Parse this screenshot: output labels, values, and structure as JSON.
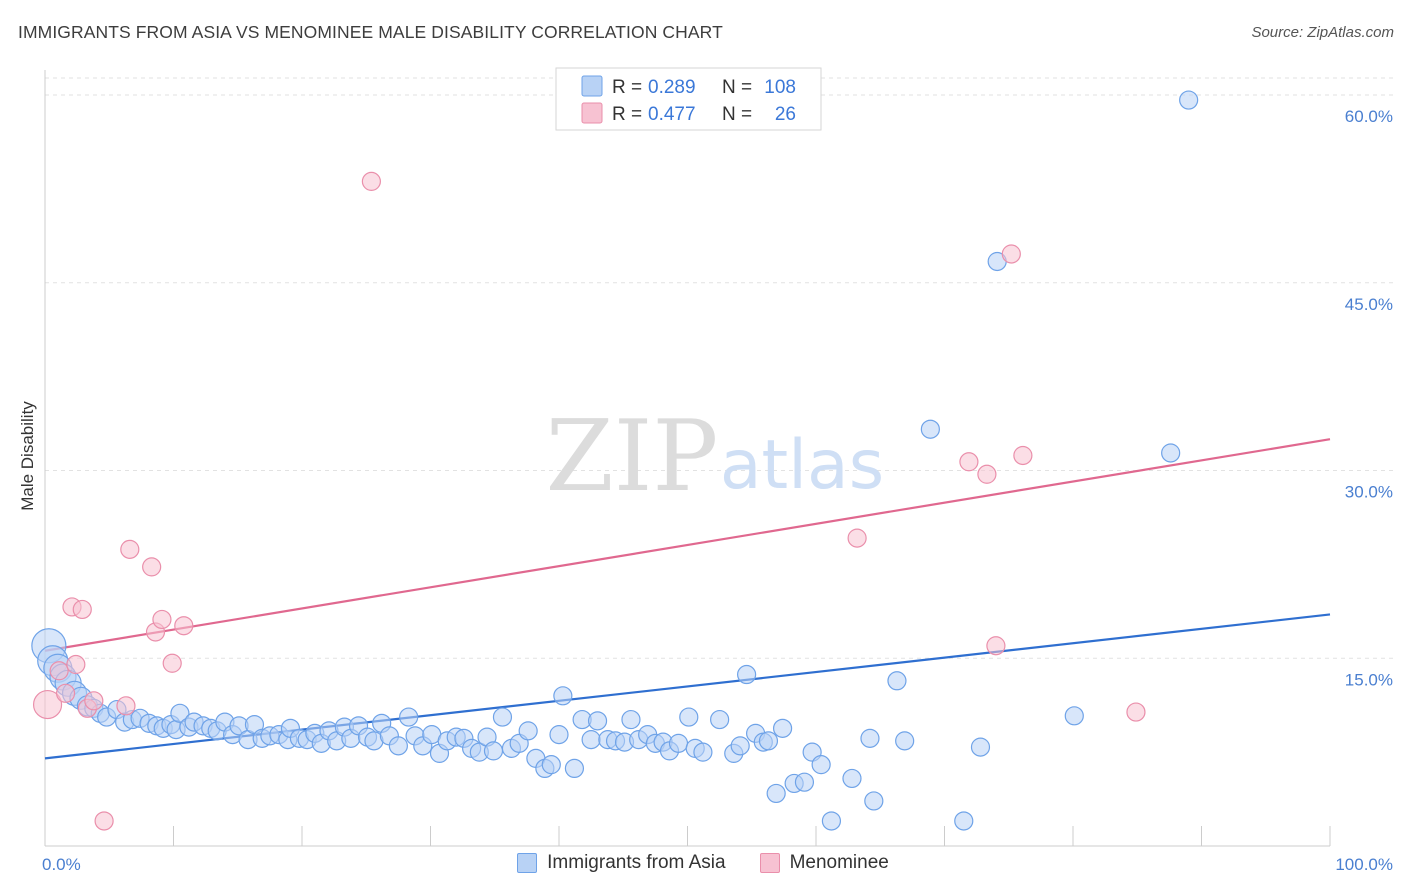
{
  "title": "IMMIGRANTS FROM ASIA VS MENOMINEE MALE DISABILITY CORRELATION CHART",
  "source": "Source: ZipAtlas.com",
  "watermark": {
    "zip": "ZIP",
    "atlas": "atlas"
  },
  "chart_data": {
    "type": "scatter",
    "ylabel": "Male Disability",
    "xlim": [
      0,
      100
    ],
    "ylim": [
      0,
      62
    ],
    "x_tick_labels": [
      {
        "value": 0,
        "label": "0.0%"
      },
      {
        "value": 100,
        "label": "100.0%"
      }
    ],
    "y_ticks": [
      {
        "value": 15,
        "label": "15.0%"
      },
      {
        "value": 30,
        "label": "30.0%"
      },
      {
        "value": 45,
        "label": "45.0%"
      },
      {
        "value": 60,
        "label": "60.0%"
      }
    ],
    "grid": true,
    "legend_position": "top-center",
    "series": [
      {
        "name": "Immigrants from Asia",
        "color": "#6fa3e8",
        "fill": "#b8d2f5",
        "line_color": "#2f6fd0",
        "R": "0.289",
        "N": "108",
        "trend": [
          [
            0,
            7.0
          ],
          [
            100,
            18.5
          ]
        ],
        "points": [
          [
            0.3,
            16.0
          ],
          [
            0.6,
            14.8
          ],
          [
            1.0,
            14.2
          ],
          [
            1.4,
            13.5
          ],
          [
            1.8,
            13.0
          ],
          [
            2.3,
            12.2
          ],
          [
            2.8,
            11.8
          ],
          [
            3.3,
            11.2
          ],
          [
            3.8,
            11.0
          ],
          [
            4.3,
            10.6
          ],
          [
            4.8,
            10.3
          ],
          [
            5.6,
            10.9
          ],
          [
            6.2,
            9.9
          ],
          [
            6.8,
            10.1
          ],
          [
            7.4,
            10.2
          ],
          [
            8.1,
            9.8
          ],
          [
            8.7,
            9.6
          ],
          [
            9.2,
            9.4
          ],
          [
            9.8,
            9.7
          ],
          [
            10.2,
            9.3
          ],
          [
            10.5,
            10.6
          ],
          [
            11.2,
            9.5
          ],
          [
            11.6,
            9.9
          ],
          [
            12.3,
            9.6
          ],
          [
            12.9,
            9.4
          ],
          [
            13.4,
            9.2
          ],
          [
            14.0,
            9.9
          ],
          [
            14.6,
            8.9
          ],
          [
            15.1,
            9.6
          ],
          [
            15.8,
            8.5
          ],
          [
            16.3,
            9.7
          ],
          [
            16.9,
            8.6
          ],
          [
            17.5,
            8.8
          ],
          [
            18.2,
            8.9
          ],
          [
            18.9,
            8.5
          ],
          [
            19.1,
            9.4
          ],
          [
            19.8,
            8.6
          ],
          [
            20.4,
            8.5
          ],
          [
            21.0,
            9.0
          ],
          [
            21.5,
            8.2
          ],
          [
            22.1,
            9.2
          ],
          [
            22.7,
            8.4
          ],
          [
            23.3,
            9.5
          ],
          [
            23.8,
            8.6
          ],
          [
            24.4,
            9.6
          ],
          [
            25.1,
            8.7
          ],
          [
            25.6,
            8.4
          ],
          [
            26.2,
            9.8
          ],
          [
            26.8,
            8.8
          ],
          [
            27.5,
            8.0
          ],
          [
            28.3,
            10.3
          ],
          [
            28.8,
            8.8
          ],
          [
            29.4,
            8.0
          ],
          [
            30.1,
            8.9
          ],
          [
            30.7,
            7.4
          ],
          [
            31.3,
            8.4
          ],
          [
            32.0,
            8.7
          ],
          [
            32.6,
            8.6
          ],
          [
            33.2,
            7.8
          ],
          [
            33.8,
            7.5
          ],
          [
            34.4,
            8.7
          ],
          [
            34.9,
            7.6
          ],
          [
            35.6,
            10.3
          ],
          [
            36.3,
            7.8
          ],
          [
            36.9,
            8.2
          ],
          [
            37.6,
            9.2
          ],
          [
            38.2,
            7.0
          ],
          [
            38.9,
            6.2
          ],
          [
            39.4,
            6.5
          ],
          [
            40.0,
            8.9
          ],
          [
            40.3,
            12.0
          ],
          [
            41.2,
            6.2
          ],
          [
            41.8,
            10.1
          ],
          [
            42.5,
            8.5
          ],
          [
            43.0,
            10.0
          ],
          [
            43.8,
            8.5
          ],
          [
            44.4,
            8.4
          ],
          [
            45.1,
            8.3
          ],
          [
            45.6,
            10.1
          ],
          [
            46.2,
            8.5
          ],
          [
            46.9,
            8.9
          ],
          [
            47.5,
            8.2
          ],
          [
            48.1,
            8.3
          ],
          [
            48.6,
            7.6
          ],
          [
            49.3,
            8.2
          ],
          [
            50.1,
            10.3
          ],
          [
            50.6,
            7.8
          ],
          [
            51.2,
            7.5
          ],
          [
            52.5,
            10.1
          ],
          [
            53.6,
            7.4
          ],
          [
            54.1,
            8.0
          ],
          [
            54.6,
            13.7
          ],
          [
            55.3,
            9.0
          ],
          [
            55.9,
            8.3
          ],
          [
            56.3,
            8.4
          ],
          [
            56.9,
            4.2
          ],
          [
            57.4,
            9.4
          ],
          [
            58.3,
            5.0
          ],
          [
            59.1,
            5.1
          ],
          [
            59.7,
            7.5
          ],
          [
            60.4,
            6.5
          ],
          [
            61.2,
            2.0
          ],
          [
            62.8,
            5.4
          ],
          [
            64.2,
            8.6
          ],
          [
            64.5,
            3.6
          ],
          [
            66.3,
            13.2
          ],
          [
            66.9,
            8.4
          ],
          [
            68.9,
            33.3
          ],
          [
            71.5,
            2.0
          ],
          [
            72.8,
            7.9
          ],
          [
            74.1,
            46.7
          ],
          [
            80.1,
            10.4
          ],
          [
            87.6,
            31.4
          ],
          [
            89.0,
            59.6
          ]
        ]
      },
      {
        "name": "Menominee",
        "color": "#ea8fab",
        "fill": "#f7c2d2",
        "line_color": "#e0688f",
        "R": "0.477",
        "N": "26",
        "trend": [
          [
            0,
            15.6
          ],
          [
            100,
            32.5
          ]
        ],
        "points": [
          [
            0.2,
            11.3
          ],
          [
            1.1,
            14.0
          ],
          [
            1.6,
            12.2
          ],
          [
            2.1,
            19.1
          ],
          [
            2.4,
            14.5
          ],
          [
            2.9,
            18.9
          ],
          [
            3.3,
            11.0
          ],
          [
            3.8,
            11.6
          ],
          [
            4.6,
            2.0
          ],
          [
            6.3,
            11.2
          ],
          [
            6.6,
            23.7
          ],
          [
            8.3,
            22.3
          ],
          [
            8.6,
            17.1
          ],
          [
            9.1,
            18.1
          ],
          [
            9.9,
            14.6
          ],
          [
            10.8,
            17.6
          ],
          [
            25.4,
            53.1
          ],
          [
            63.2,
            24.6
          ],
          [
            71.9,
            30.7
          ],
          [
            73.3,
            29.7
          ],
          [
            74.0,
            16.0
          ],
          [
            75.2,
            47.3
          ],
          [
            76.1,
            31.2
          ],
          [
            84.9,
            10.7
          ]
        ]
      }
    ]
  }
}
